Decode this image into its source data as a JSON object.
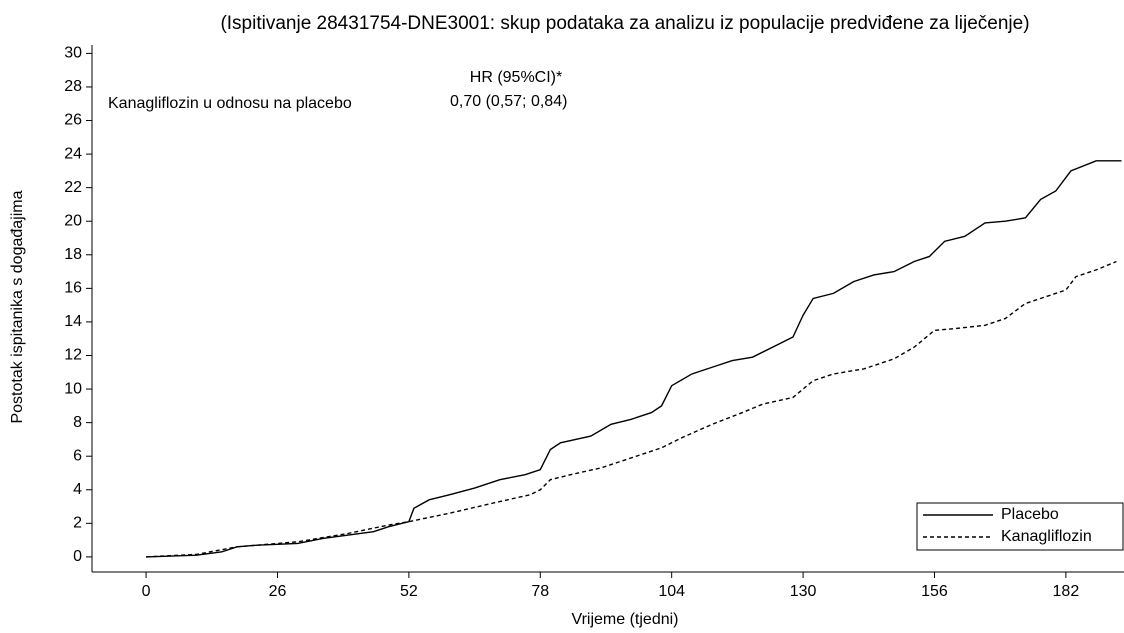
{
  "chart_data": {
    "type": "line",
    "title": "(Ispitivanje 28431754-DNE3001: skup podataka za analizu iz populacije predviđene  za liječenje)",
    "x_label": "Vrijeme (tjedni)",
    "y_label": "Postotak ispitanika s događajima",
    "annotations": [
      "HR (95%CI)*",
      "Kanagliflozin u odnosu na placebo",
      "0,70 (0,57; 0,84)"
    ],
    "xlim": [
      -10.7,
      193.5
    ],
    "ylim": [
      -0.9,
      30.5
    ],
    "xticks": [
      0,
      26,
      52,
      78,
      104,
      130,
      156,
      182
    ],
    "yticks": [
      0,
      2,
      4,
      6,
      8,
      10,
      12,
      14,
      16,
      18,
      20,
      22,
      24,
      26,
      28,
      30
    ],
    "legend": "lower right",
    "series": [
      {
        "name": "Placebo",
        "color": "#000000",
        "dash": "solid",
        "x": [
          0,
          10,
          15,
          18,
          22,
          30,
          35,
          40,
          45,
          48,
          52,
          53,
          56,
          60,
          65,
          70,
          75,
          78,
          80,
          82,
          88,
          92,
          96,
          100,
          102,
          104,
          108,
          112,
          116,
          120,
          124,
          128,
          130,
          132,
          136,
          140,
          144,
          148,
          152,
          155,
          158,
          162,
          166,
          170,
          174,
          177,
          180,
          182,
          183,
          188,
          193
        ],
        "values": [
          0,
          0.1,
          0.3,
          0.6,
          0.7,
          0.8,
          1.1,
          1.3,
          1.5,
          1.8,
          2.1,
          2.9,
          3.4,
          3.7,
          4.1,
          4.6,
          4.9,
          5.2,
          6.4,
          6.8,
          7.2,
          7.9,
          8.2,
          8.6,
          9.0,
          10.2,
          10.9,
          11.3,
          11.7,
          11.9,
          12.5,
          13.1,
          14.4,
          15.4,
          15.7,
          16.4,
          16.8,
          17.0,
          17.6,
          17.9,
          18.8,
          19.1,
          19.9,
          20.0,
          20.2,
          21.3,
          21.8,
          22.6,
          23.0,
          23.6,
          23.6
        ]
      },
      {
        "name": "Kanagliflozin",
        "color": "#000000",
        "dash": "dashed",
        "x": [
          0,
          10,
          18,
          30,
          40,
          48,
          52,
          60,
          70,
          76,
          78,
          80,
          84,
          90,
          96,
          102,
          106,
          112,
          118,
          122,
          128,
          132,
          136,
          142,
          148,
          152,
          156,
          160,
          166,
          170,
          174,
          178,
          182,
          184,
          188,
          192
        ],
        "values": [
          0,
          0.15,
          0.6,
          0.9,
          1.4,
          1.9,
          2.1,
          2.6,
          3.3,
          3.7,
          4.0,
          4.6,
          4.9,
          5.3,
          5.9,
          6.5,
          7.1,
          7.9,
          8.6,
          9.1,
          9.5,
          10.5,
          10.9,
          11.2,
          11.8,
          12.5,
          13.5,
          13.6,
          13.8,
          14.2,
          15.1,
          15.5,
          15.9,
          16.7,
          17.1,
          17.6
        ]
      }
    ]
  }
}
